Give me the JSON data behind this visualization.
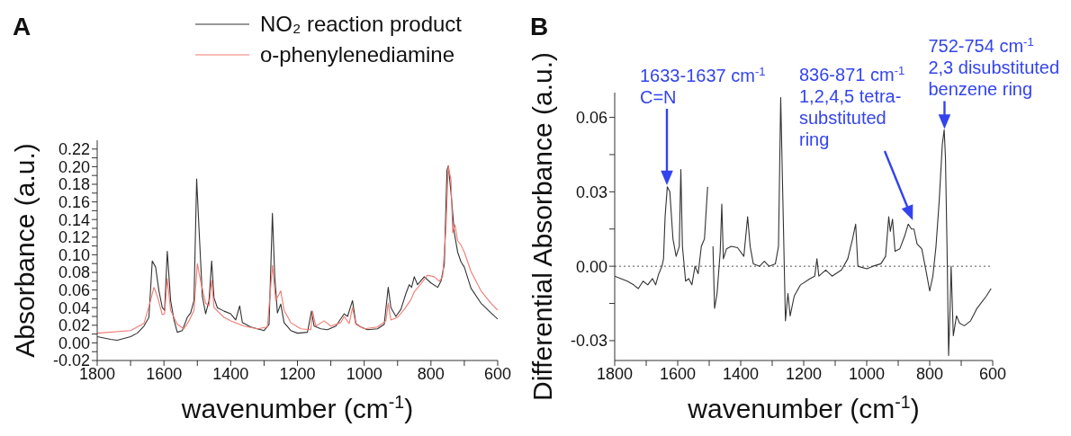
{
  "chart_data": [
    {
      "type": "line",
      "title": "A",
      "xlabel": "wavenumber (cm$^{-1}$)",
      "ylabel": "Absorbance (a.u.)",
      "legend": "top right",
      "xlim": [
        1800,
        600
      ],
      "xticks": [
        1800,
        {
          "value": 1700,
          "label": null
        },
        1600,
        {
          "value": 1500,
          "label": null
        },
        1400,
        {
          "value": 1300,
          "label": null
        },
        1200,
        {
          "value": 1100,
          "label": null
        },
        1000,
        {
          "value": 900,
          "label": null
        },
        800,
        {
          "value": 700,
          "label": null
        },
        600
      ],
      "ylim": [
        -0.02,
        0.23
      ],
      "yticks": [
        -0.02,
        {
          "value": -0.01,
          "label": null
        },
        {
          "value": 0,
          "label": "0.00"
        },
        {
          "value": 0.01,
          "label": null
        },
        0.02,
        {
          "value": 0.03,
          "label": null
        },
        0.04,
        {
          "value": 0.05,
          "label": null
        },
        0.06,
        {
          "value": 0.07,
          "label": null
        },
        0.08,
        {
          "value": 0.09,
          "label": null
        },
        {
          "value": 0.1,
          "label": "0.10"
        },
        {
          "value": 0.11,
          "label": null
        },
        0.12,
        {
          "value": 0.13,
          "label": null
        },
        0.14,
        {
          "value": 0.15,
          "label": null
        },
        0.16,
        {
          "value": 0.17,
          "label": null
        },
        0.18,
        {
          "value": 0.19,
          "label": null
        },
        {
          "value": 0.2,
          "label": "0.20"
        },
        {
          "value": 0.21,
          "label": null
        },
        0.22
      ],
      "series": [
        {
          "name": "NO₂ reaction product",
          "color": "#333333",
          "x": [
            1800,
            1760,
            1740,
            1700,
            1680,
            1660,
            1645,
            1635,
            1625,
            1615,
            1605,
            1598,
            1590,
            1580,
            1570,
            1560,
            1545,
            1530,
            1520,
            1510,
            1502,
            1495,
            1485,
            1475,
            1465,
            1457,
            1450,
            1440,
            1420,
            1400,
            1385,
            1373,
            1365,
            1340,
            1320,
            1300,
            1285,
            1275,
            1268,
            1260,
            1250,
            1240,
            1220,
            1200,
            1170,
            1158,
            1150,
            1130,
            1110,
            1085,
            1060,
            1050,
            1035,
            1025,
            1010,
            990,
            960,
            940,
            928,
            920,
            905,
            890,
            875,
            865,
            858,
            850,
            840,
            820,
            800,
            780,
            770,
            760,
            752,
            748,
            740,
            730,
            720,
            710,
            700,
            680,
            650,
            620,
            600
          ],
          "values": [
            0.007,
            0.004,
            0.003,
            0.007,
            0.011,
            0.019,
            0.029,
            0.093,
            0.086,
            0.059,
            0.04,
            0.037,
            0.104,
            0.048,
            0.026,
            0.012,
            0.014,
            0.029,
            0.034,
            0.048,
            0.186,
            0.13,
            0.053,
            0.033,
            0.048,
            0.093,
            0.051,
            0.04,
            0.036,
            0.033,
            0.026,
            0.042,
            0.023,
            0.018,
            0.016,
            0.014,
            0.021,
            0.147,
            0.075,
            0.034,
            0.044,
            0.023,
            0.014,
            0.011,
            0.012,
            0.036,
            0.019,
            0.016,
            0.015,
            0.019,
            0.033,
            0.03,
            0.048,
            0.022,
            0.018,
            0.015,
            0.016,
            0.021,
            0.063,
            0.04,
            0.03,
            0.038,
            0.056,
            0.066,
            0.063,
            0.075,
            0.066,
            0.075,
            0.068,
            0.063,
            0.07,
            0.089,
            0.196,
            0.201,
            0.171,
            0.125,
            0.103,
            0.092,
            0.086,
            0.062,
            0.045,
            0.034,
            0.027
          ]
        },
        {
          "name": "o-phenylenediamine",
          "color": "#f07a72",
          "x": [
            1800,
            1700,
            1660,
            1640,
            1630,
            1620,
            1605,
            1598,
            1590,
            1580,
            1560,
            1540,
            1525,
            1510,
            1500,
            1490,
            1475,
            1465,
            1457,
            1450,
            1420,
            1400,
            1380,
            1360,
            1320,
            1290,
            1275,
            1265,
            1250,
            1240,
            1220,
            1190,
            1160,
            1155,
            1145,
            1120,
            1100,
            1070,
            1060,
            1045,
            1035,
            1025,
            1000,
            960,
            935,
            928,
            920,
            900,
            880,
            860,
            850,
            830,
            810,
            790,
            775,
            765,
            755,
            748,
            740,
            735,
            728,
            720,
            710,
            700,
            680,
            650,
            620,
            600
          ],
          "values": [
            0.011,
            0.014,
            0.022,
            0.048,
            0.063,
            0.053,
            0.032,
            0.033,
            0.073,
            0.037,
            0.021,
            0.016,
            0.025,
            0.037,
            0.09,
            0.07,
            0.045,
            0.042,
            0.071,
            0.04,
            0.029,
            0.025,
            0.022,
            0.019,
            0.016,
            0.018,
            0.088,
            0.048,
            0.059,
            0.037,
            0.023,
            0.016,
            0.015,
            0.036,
            0.019,
            0.025,
            0.019,
            0.023,
            0.03,
            0.022,
            0.04,
            0.021,
            0.016,
            0.018,
            0.025,
            0.045,
            0.026,
            0.029,
            0.038,
            0.049,
            0.058,
            0.067,
            0.077,
            0.075,
            0.07,
            0.075,
            0.13,
            0.201,
            0.185,
            0.125,
            0.134,
            0.116,
            0.111,
            0.103,
            0.081,
            0.059,
            0.045,
            0.037
          ]
        }
      ]
    },
    {
      "type": "line",
      "title": "B",
      "xlabel": "wavenumber (cm$^{-1}$)",
      "ylabel": "Differential Absorbance (a.u.)",
      "xlim": [
        1800,
        600
      ],
      "xticks": [
        1800,
        {
          "value": 1700,
          "label": null
        },
        1600,
        {
          "value": 1500,
          "label": null
        },
        1400,
        {
          "value": 1300,
          "label": null
        },
        1200,
        {
          "value": 1100,
          "label": null
        },
        1000,
        {
          "value": 900,
          "label": null
        },
        800,
        {
          "value": 700,
          "label": null
        },
        600
      ],
      "ylim": [
        -0.038,
        0.07
      ],
      "yticks": [
        {
          "value": -0.03,
          "label": "-0.03"
        },
        {
          "value": -0.015,
          "label": null
        },
        {
          "value": 0,
          "label": "0.00"
        },
        {
          "value": 0.015,
          "label": null
        },
        {
          "value": 0.03,
          "label": "0.03"
        },
        {
          "value": 0.045,
          "label": null
        },
        {
          "value": 0.06,
          "label": "0.06"
        }
      ],
      "ref_lines": [
        {
          "axis": "y",
          "value": 0,
          "color": "#555555",
          "line_style": "dotted"
        }
      ],
      "annotations": [
        "1633-1637 cm$^{-1}$\nC=N",
        "836-871 cm$^{-1}$\n1,2,4,5 tetra-\nsubstituted\nring",
        {
          "text": "752-754 cm$^{-1}$\n2,3 disubstituted\nbenzene ring",
          "x": 753,
          "y": 0.055
        }
      ],
      "series": [
        {
          "color": "#333333",
          "x": [
            1800,
            1780,
            1760,
            1740,
            1725,
            1710,
            1695,
            1680,
            1670,
            1660,
            1650,
            1645,
            1640,
            1633,
            1625,
            1615,
            1605,
            1595,
            1590,
            1585,
            1575,
            1565,
            1555,
            1545,
            1535,
            1525,
            1515,
            1505,
            1503,
            1495,
            1488,
            1483,
            1475,
            1465,
            1460,
            1455,
            1445,
            1430,
            1410,
            1390,
            1378,
            1370,
            1360,
            1340,
            1325,
            1310,
            1290,
            1280,
            1273,
            1265,
            1258,
            1250,
            1243,
            1230,
            1210,
            1180,
            1165,
            1158,
            1152,
            1130,
            1110,
            1080,
            1060,
            1045,
            1035,
            1028,
            1000,
            980,
            955,
            940,
            930,
            925,
            918,
            910,
            895,
            880,
            868,
            858,
            850,
            840,
            825,
            810,
            800,
            790,
            780,
            770,
            760,
            754,
            750,
            745,
            740,
            735,
            732,
            725,
            715,
            705,
            690,
            670,
            650,
            620,
            605
          ],
          "values": [
            -0.004,
            -0.005,
            -0.006,
            -0.0075,
            -0.009,
            -0.006,
            -0.0075,
            -0.005,
            -0.0075,
            -0.003,
            0.0,
            0.003,
            0.02,
            0.032,
            0.03,
            0.011,
            0.004,
            0.008,
            0.039,
            0.008,
            -0.006,
            -0.005,
            -0.0075,
            0.0,
            -0.003,
            0.008,
            0.011,
            0.032,
            null,
            null,
            0.008,
            -0.017,
            -0.011,
            0.006,
            0.025,
            0.003,
            0.007,
            0.008,
            0.0075,
            0.004,
            0.02,
            0.008,
            0.001,
            0.0,
            0.002,
            0.0,
            0.001,
            0.008,
            0.068,
            0.02,
            -0.022,
            -0.011,
            -0.02,
            -0.012,
            -0.0075,
            -0.005,
            -0.004,
            0.003,
            -0.004,
            -0.0015,
            -0.004,
            -0.0015,
            0.003,
            0.011,
            0.017,
            0.0,
            -0.001,
            0.0,
            0.001,
            0.004,
            0.02,
            0.014,
            0.019,
            0.006,
            0.007,
            0.012,
            0.017,
            0.015,
            0.015,
            0.009,
            0.007,
            -0.003,
            -0.01,
            -0.004,
            0.008,
            0.026,
            0.049,
            0.055,
            0.044,
            0.008,
            -0.036,
            -0.016,
            0.0,
            -0.028,
            -0.02,
            -0.023,
            -0.024,
            -0.022,
            -0.017,
            -0.012,
            -0.009
          ]
        }
      ]
    }
  ]
}
